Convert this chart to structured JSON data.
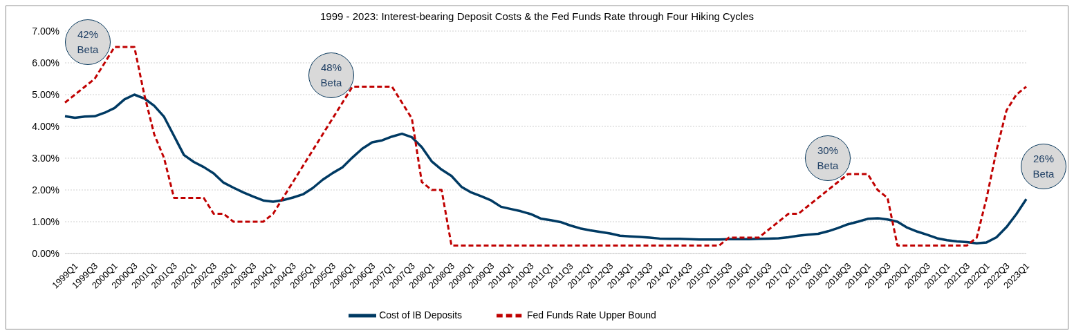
{
  "chart_data": {
    "type": "line",
    "title": "1999 - 2023: Interest-bearing Deposit Costs & the Fed Funds Rate through Four Hiking Cycles",
    "categories": [
      "1999Q1",
      null,
      "1999Q3",
      null,
      "2000Q1",
      null,
      "2000Q3",
      null,
      "2001Q1",
      null,
      "2001Q3",
      null,
      "2002Q1",
      null,
      "2002Q3",
      null,
      "2003Q1",
      null,
      "2003Q3",
      null,
      "2004Q1",
      null,
      "2004Q3",
      null,
      "2005Q1",
      null,
      "2005Q3",
      null,
      "2006Q1",
      null,
      "2006Q3",
      null,
      "2007Q1",
      null,
      "2007Q3",
      null,
      "2008Q1",
      null,
      "2008Q3",
      null,
      "2009Q1",
      null,
      "2009Q3",
      null,
      "2010Q1",
      null,
      "2010Q3",
      null,
      "2011Q1",
      null,
      "2011Q3",
      null,
      "2012Q1",
      null,
      "2012Q3",
      null,
      "2013Q1",
      null,
      "2013Q3",
      null,
      "2014Q1",
      null,
      "2014Q3",
      null,
      "2015Q1",
      null,
      "2015Q3",
      null,
      "2016Q1",
      null,
      "2016Q3",
      null,
      "2017Q1",
      null,
      "2017Q3",
      null,
      "2018Q1",
      null,
      "2018Q3",
      null,
      "2019Q1",
      null,
      "2019Q3",
      null,
      "2020Q1",
      null,
      "2020Q3",
      null,
      "2021Q1",
      null,
      "2021Q3",
      null,
      "2022Q1",
      null,
      "2022Q3",
      null,
      "2023Q1",
      null
    ],
    "series": [
      {
        "name": "Cost of IB Deposits",
        "color": "#003a63",
        "line_style": "solid",
        "values": [
          4.32,
          4.27,
          4.31,
          4.32,
          4.43,
          4.58,
          4.85,
          5.0,
          4.88,
          4.65,
          4.3,
          3.7,
          3.1,
          2.88,
          2.72,
          2.52,
          2.23,
          2.07,
          1.92,
          1.79,
          1.67,
          1.63,
          1.68,
          1.76,
          1.86,
          2.06,
          2.32,
          2.53,
          2.71,
          3.02,
          3.3,
          3.5,
          3.56,
          3.68,
          3.77,
          3.66,
          3.35,
          2.9,
          2.64,
          2.44,
          2.1,
          1.92,
          1.8,
          1.67,
          1.47,
          1.4,
          1.33,
          1.24,
          1.1,
          1.05,
          0.99,
          0.88,
          0.79,
          0.73,
          0.68,
          0.63,
          0.56,
          0.54,
          0.52,
          0.5,
          0.47,
          0.46,
          0.46,
          0.45,
          0.44,
          0.44,
          0.44,
          0.45,
          0.45,
          0.45,
          0.46,
          0.47,
          0.48,
          0.51,
          0.56,
          0.59,
          0.62,
          0.7,
          0.8,
          0.92,
          1.0,
          1.09,
          1.11,
          1.07,
          1.0,
          0.81,
          0.69,
          0.59,
          0.48,
          0.42,
          0.38,
          0.36,
          0.32,
          0.35,
          0.51,
          0.83,
          1.24,
          1.71
        ]
      },
      {
        "name": "Fed Funds Rate Upper Bound",
        "color": "#c00000",
        "line_style": "dashed",
        "values": [
          4.75,
          5.0,
          5.25,
          5.5,
          6.0,
          6.5,
          6.5,
          6.5,
          5.0,
          3.75,
          3.0,
          1.75,
          1.75,
          1.75,
          1.75,
          1.25,
          1.25,
          1.0,
          1.0,
          1.0,
          1.0,
          1.25,
          1.75,
          2.25,
          2.75,
          3.25,
          3.75,
          4.25,
          4.75,
          5.25,
          5.25,
          5.25,
          5.25,
          5.25,
          4.75,
          4.25,
          2.25,
          2.0,
          2.0,
          0.25,
          0.25,
          0.25,
          0.25,
          0.25,
          0.25,
          0.25,
          0.25,
          0.25,
          0.25,
          0.25,
          0.25,
          0.25,
          0.25,
          0.25,
          0.25,
          0.25,
          0.25,
          0.25,
          0.25,
          0.25,
          0.25,
          0.25,
          0.25,
          0.25,
          0.25,
          0.25,
          0.25,
          0.5,
          0.5,
          0.5,
          0.5,
          0.75,
          1.0,
          1.25,
          1.25,
          1.5,
          1.75,
          2.0,
          2.25,
          2.5,
          2.5,
          2.5,
          2.0,
          1.75,
          0.25,
          0.25,
          0.25,
          0.25,
          0.25,
          0.25,
          0.25,
          0.25,
          0.5,
          1.75,
          3.25,
          4.5,
          5.0,
          5.25
        ]
      }
    ],
    "ylim": [
      0,
      7
    ],
    "yticks": [
      {
        "value": 0,
        "label": "0.00%"
      },
      {
        "value": 1,
        "label": "1.00%"
      },
      {
        "value": 2,
        "label": "2.00%"
      },
      {
        "value": 3,
        "label": "3.00%"
      },
      {
        "value": 4,
        "label": "4.00%"
      },
      {
        "value": 5,
        "label": "5.00%"
      },
      {
        "value": 6,
        "label": "6.00%"
      },
      {
        "value": 7,
        "label": "7.00%"
      }
    ],
    "grid": "y",
    "legend": "bottom",
    "marker": "none",
    "annotations": [
      "42% Beta",
      "48% Beta",
      "30% Beta",
      "26% Beta"
    ]
  }
}
